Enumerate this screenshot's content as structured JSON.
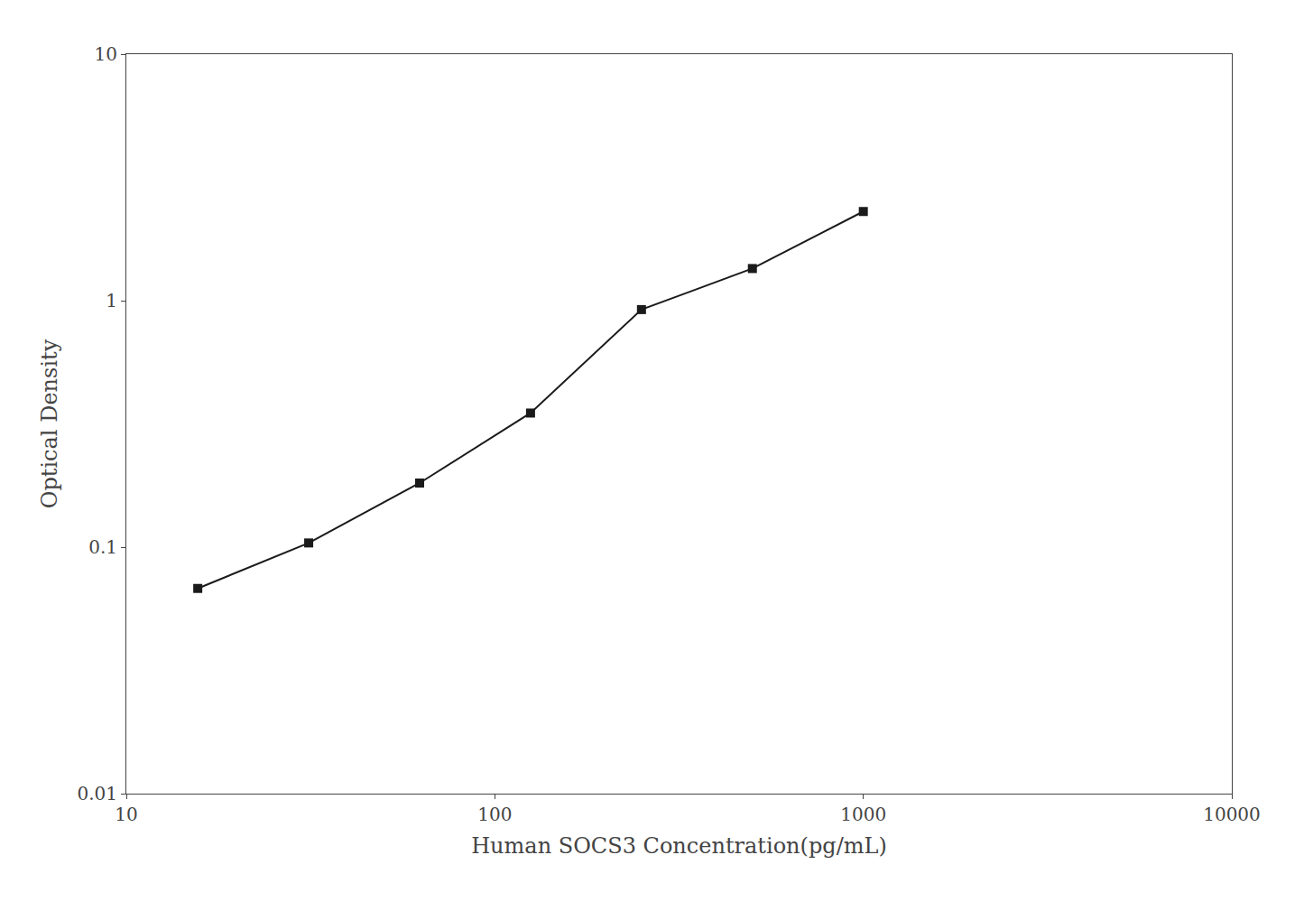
{
  "chart_data": {
    "type": "line",
    "x": [
      15.625,
      31.25,
      62.5,
      125,
      250,
      500,
      1000
    ],
    "values": [
      0.068,
      0.104,
      0.182,
      0.35,
      0.92,
      1.35,
      2.3
    ],
    "xlabel": "Human SOCS3 Concentration(pg/mL)",
    "ylabel": "Optical Density",
    "xlim": [
      10,
      10000
    ],
    "ylim": [
      0.01,
      10
    ],
    "xticks": [
      10,
      100,
      1000,
      10000
    ],
    "yticks": [
      0.01,
      0.1,
      1,
      10
    ],
    "log": true,
    "grid": false,
    "color": "#1a1a1a",
    "marker": "square",
    "line_style": "solid"
  }
}
